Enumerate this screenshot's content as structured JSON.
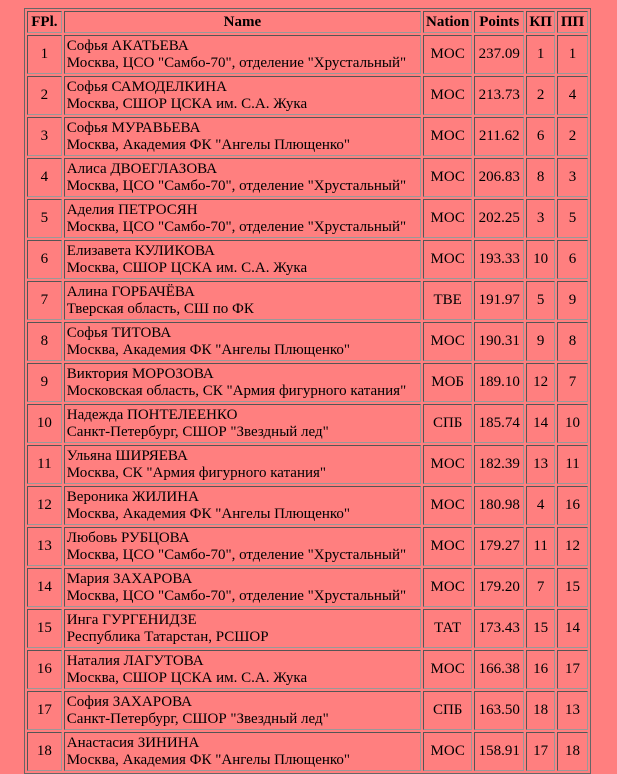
{
  "headers": [
    "FPl.",
    "Name",
    "Nation",
    "Points",
    "КП",
    "ПП"
  ],
  "rows": [
    {
      "place": "1",
      "name": "Софья АКАТЬЕВА",
      "club": "Москва, ЦСО \"Самбо-70\", отделение \"Хрустальный\"",
      "nation": "МОС",
      "points": "237.09",
      "sp": "1",
      "fs": "1"
    },
    {
      "place": "2",
      "name": "Софья САМОДЕЛКИНА",
      "club": "Москва, СШОР ЦСКА им. С.А. Жука",
      "nation": "МОС",
      "points": "213.73",
      "sp": "2",
      "fs": "4"
    },
    {
      "place": "3",
      "name": "Софья МУРАВЬЕВА",
      "club": "Москва, Академия ФК \"Ангелы Плющенко\"",
      "nation": "МОС",
      "points": "211.62",
      "sp": "6",
      "fs": "2"
    },
    {
      "place": "4",
      "name": "Алиса ДВОЕГЛАЗОВА",
      "club": "Москва, ЦСО \"Самбо-70\", отделение \"Хрустальный\"",
      "nation": "МОС",
      "points": "206.83",
      "sp": "8",
      "fs": "3"
    },
    {
      "place": "5",
      "name": "Аделия ПЕТРОСЯН",
      "club": "Москва, ЦСО \"Самбо-70\", отделение \"Хрустальный\"",
      "nation": "МОС",
      "points": "202.25",
      "sp": "3",
      "fs": "5"
    },
    {
      "place": "6",
      "name": "Елизавета КУЛИКОВА",
      "club": "Москва, СШОР ЦСКА им. С.А. Жука",
      "nation": "МОС",
      "points": "193.33",
      "sp": "10",
      "fs": "6"
    },
    {
      "place": "7",
      "name": "Алина ГОРБАЧЁВА",
      "club": "Тверская область, СШ по ФК",
      "nation": "ТВЕ",
      "points": "191.97",
      "sp": "5",
      "fs": "9"
    },
    {
      "place": "8",
      "name": "Софья ТИТОВА",
      "club": "Москва, Академия ФК \"Ангелы Плющенко\"",
      "nation": "МОС",
      "points": "190.31",
      "sp": "9",
      "fs": "8"
    },
    {
      "place": "9",
      "name": "Виктория МОРОЗОВА",
      "club": "Московская область, СК \"Армия фигурного катания\"",
      "nation": "МОБ",
      "points": "189.10",
      "sp": "12",
      "fs": "7"
    },
    {
      "place": "10",
      "name": "Надежда ПОНТЕЛЕЕНКО",
      "club": "Санкт-Петербург, СШОР \"Звездный лед\"",
      "nation": "СПБ",
      "points": "185.74",
      "sp": "14",
      "fs": "10"
    },
    {
      "place": "11",
      "name": "Ульяна ШИРЯЕВА",
      "club": "Москва, СК \"Армия фигурного катания\"",
      "nation": "МОС",
      "points": "182.39",
      "sp": "13",
      "fs": "11"
    },
    {
      "place": "12",
      "name": "Вероника ЖИЛИНА",
      "club": "Москва, Академия ФК \"Ангелы Плющенко\"",
      "nation": "МОС",
      "points": "180.98",
      "sp": "4",
      "fs": "16"
    },
    {
      "place": "13",
      "name": "Любовь РУБЦОВА",
      "club": "Москва, ЦСО \"Самбо-70\", отделение \"Хрустальный\"",
      "nation": "МОС",
      "points": "179.27",
      "sp": "11",
      "fs": "12"
    },
    {
      "place": "14",
      "name": "Мария ЗАХАРОВА",
      "club": "Москва, ЦСО \"Самбо-70\", отделение \"Хрустальный\"",
      "nation": "МОС",
      "points": "179.20",
      "sp": "7",
      "fs": "15"
    },
    {
      "place": "15",
      "name": "Инга ГУРГЕНИДЗЕ",
      "club": "Республика Татарстан, РСШОР",
      "nation": "ТАТ",
      "points": "173.43",
      "sp": "15",
      "fs": "14"
    },
    {
      "place": "16",
      "name": "Наталия ЛАГУТОВА",
      "club": "Москва, СШОР ЦСКА им. С.А. Жука",
      "nation": "МОС",
      "points": "166.38",
      "sp": "16",
      "fs": "17"
    },
    {
      "place": "17",
      "name": "София ЗАХАРОВА",
      "club": "Санкт-Петербург, СШОР \"Звездный лед\"",
      "nation": "СПБ",
      "points": "163.50",
      "sp": "18",
      "fs": "13"
    },
    {
      "place": "18",
      "name": "Анастасия ЗИНИНА",
      "club": "Москва, Академия ФК \"Ангелы Плющенко\"",
      "nation": "МОС",
      "points": "158.91",
      "sp": "17",
      "fs": "18"
    }
  ]
}
